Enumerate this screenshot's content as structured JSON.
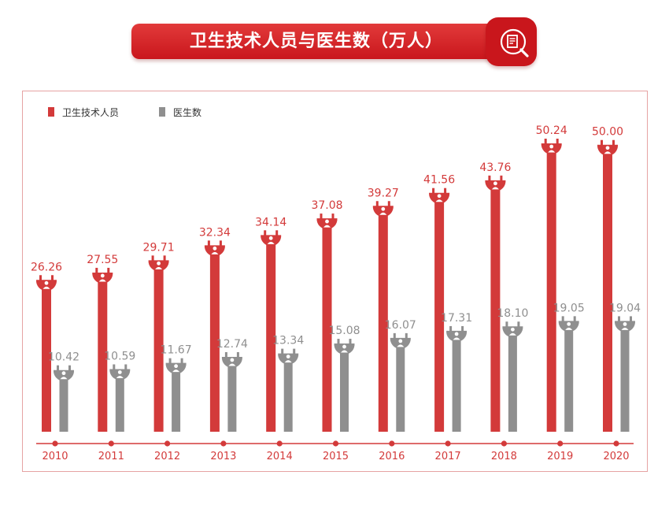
{
  "title": "卫生技术人员与医生数（万人）",
  "icons": {
    "title_icon": "document-magnifier-icon",
    "marker_icon": "doctor-bulb-icon"
  },
  "colors": {
    "primary": "#d33a3a",
    "secondary": "#8f8f8f",
    "axis": "#d33a3a"
  },
  "chart_data": {
    "type": "bar",
    "title": "卫生技术人员与医生数（万人）",
    "categories": [
      "2010",
      "2011",
      "2012",
      "2013",
      "2014",
      "2015",
      "2016",
      "2017",
      "2018",
      "2019",
      "2020"
    ],
    "series": [
      {
        "name": "卫生技术人员",
        "values": [
          26.26,
          27.55,
          29.71,
          32.34,
          34.14,
          37.08,
          39.27,
          41.56,
          43.76,
          50.24,
          50.0
        ]
      },
      {
        "name": "医生数",
        "values": [
          10.42,
          10.59,
          11.67,
          12.74,
          13.34,
          15.08,
          16.07,
          17.31,
          18.1,
          19.05,
          19.04
        ]
      }
    ],
    "data_labels": [
      [
        "26.26",
        "27.55",
        "29.71",
        "32.34",
        "34.14",
        "37.08",
        "39.27",
        "41.56",
        "43.76",
        "50.24",
        "50.00"
      ],
      [
        "10.42",
        "10.59",
        "11.67",
        "12.74",
        "13.34",
        "15.08",
        "16.07",
        "17.31",
        "18.10",
        "19.05",
        "19.04"
      ]
    ],
    "xlabel": "",
    "ylabel": "",
    "ylim": [
      0,
      50.24
    ],
    "legend": "top-left",
    "grid": false
  }
}
